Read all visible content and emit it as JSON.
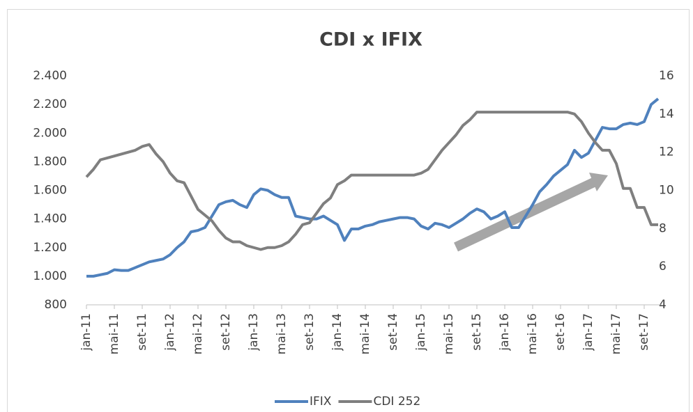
{
  "chart_data": {
    "type": "line",
    "title": "CDI x IFIX",
    "categories": [
      "jan-11",
      null,
      null,
      null,
      "mai-11",
      null,
      null,
      null,
      "set-11",
      null,
      null,
      null,
      "jan-12",
      null,
      null,
      null,
      "mai-12",
      null,
      null,
      null,
      "set-12",
      null,
      null,
      null,
      "jan-13",
      null,
      null,
      null,
      "mai-13",
      null,
      null,
      null,
      "set-13",
      null,
      null,
      null,
      "jan-14",
      null,
      null,
      null,
      "mai-14",
      null,
      null,
      null,
      "set-14",
      null,
      null,
      null,
      "jan-15",
      null,
      null,
      null,
      "mai-15",
      null,
      null,
      null,
      "set-15",
      null,
      null,
      null,
      "jan-16",
      null,
      null,
      null,
      "mai-16",
      null,
      null,
      null,
      "set-16",
      null,
      null,
      null,
      "jan-17",
      null,
      null,
      null,
      "mai-17",
      null,
      null,
      null,
      "set-17",
      null,
      null
    ],
    "series": [
      {
        "name": "IFIX",
        "color": "#4f81bd",
        "values": [
          1000,
          1000,
          1010,
          1020,
          1045,
          1040,
          1040,
          1060,
          1080,
          1100,
          1110,
          1120,
          1150,
          1200,
          1240,
          1310,
          1320,
          1340,
          1420,
          1500,
          1520,
          1530,
          1500,
          1480,
          1570,
          1610,
          1600,
          1570,
          1550,
          1550,
          1420,
          1410,
          1400,
          1400,
          1420,
          1390,
          1360,
          1250,
          1330,
          1330,
          1350,
          1360,
          1380,
          1390,
          1400,
          1410,
          1410,
          1400,
          1350,
          1330,
          1370,
          1360,
          1340,
          1370,
          1400,
          1440,
          1470,
          1450,
          1400,
          1420,
          1450,
          1340,
          1340,
          1420,
          1500,
          1590,
          1640,
          1700,
          1740,
          1780,
          1880,
          1830,
          1860,
          1950,
          2040,
          2030,
          2030,
          2060,
          2070,
          2060,
          2080,
          2200,
          2240
        ]
      },
      {
        "name": "CDI 252",
        "color": "#7f7f7f",
        "axis": "y2",
        "values": [
          10.7,
          11.1,
          11.6,
          11.7,
          11.8,
          11.9,
          12.0,
          12.1,
          12.3,
          12.4,
          11.9,
          11.5,
          10.9,
          10.5,
          10.4,
          9.7,
          9.0,
          8.7,
          8.4,
          7.9,
          7.5,
          7.3,
          7.3,
          7.1,
          7.0,
          6.9,
          7.0,
          7.0,
          7.1,
          7.3,
          7.7,
          8.2,
          8.3,
          8.8,
          9.3,
          9.6,
          10.3,
          10.5,
          10.8,
          10.8,
          10.8,
          10.8,
          10.8,
          10.8,
          10.8,
          10.8,
          10.8,
          10.8,
          10.9,
          11.1,
          11.6,
          12.1,
          12.5,
          12.9,
          13.4,
          13.7,
          14.1,
          14.1,
          14.1,
          14.1,
          14.1,
          14.1,
          14.1,
          14.1,
          14.1,
          14.1,
          14.1,
          14.1,
          14.1,
          14.1,
          14.0,
          13.6,
          13.0,
          12.5,
          12.1,
          12.1,
          11.4,
          10.1,
          10.1,
          9.1,
          9.1,
          8.2,
          8.2
        ]
      }
    ],
    "ylim": [
      800,
      2400
    ],
    "yticks": [
      {
        "value": 800,
        "label": "800"
      },
      {
        "value": 1000,
        "label": "1.000"
      },
      {
        "value": 1200,
        "label": "1.200"
      },
      {
        "value": 1400,
        "label": "1.400"
      },
      {
        "value": 1600,
        "label": "1.600"
      },
      {
        "value": 1800,
        "label": "1.800"
      },
      {
        "value": 2000,
        "label": "2.000"
      },
      {
        "value": 2200,
        "label": "2.200"
      },
      {
        "value": 2400,
        "label": "2.400"
      }
    ],
    "y2lim": [
      4,
      16
    ],
    "y2ticks": [
      4,
      6,
      8,
      10,
      12,
      14,
      16
    ],
    "legend": "bottom"
  }
}
